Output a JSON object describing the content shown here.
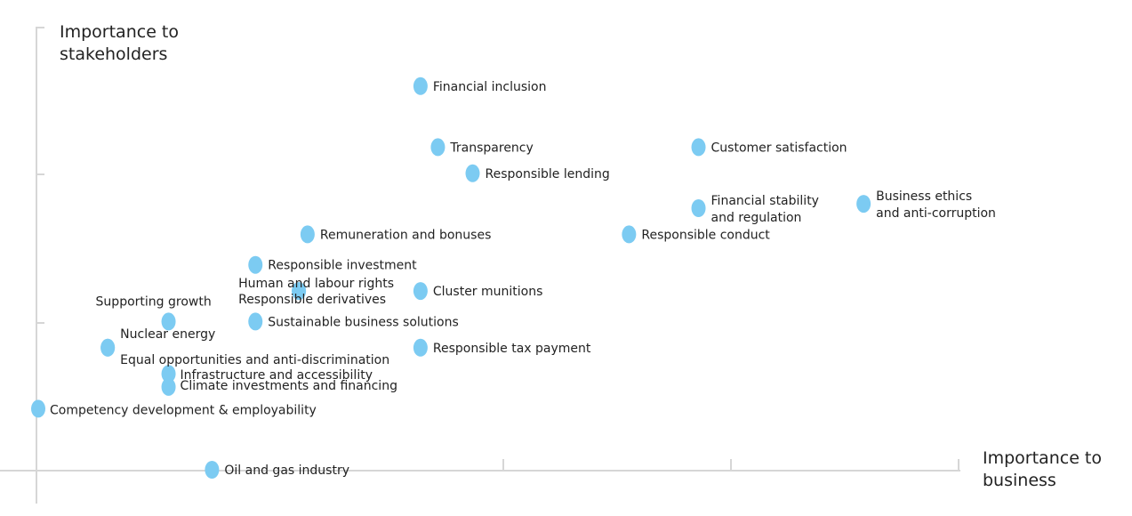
{
  "chart_data": {
    "type": "scatter",
    "title": "",
    "xlabel": "Importance to business",
    "ylabel": "Importance to stakeholders",
    "xlabel_lines": [
      "Importance to",
      "business"
    ],
    "ylabel_lines": [
      "Importance to",
      "stakeholders"
    ],
    "xlim": [
      0,
      1
    ],
    "ylim": [
      0,
      1
    ],
    "grid": false,
    "marker_color": "#7ccbf2",
    "axis_color": "#d6d6d6",
    "points": [
      {
        "label": "Financial inclusion",
        "x": 0.44,
        "y": 0.88
      },
      {
        "label": "Transparency",
        "x": 0.46,
        "y": 0.74
      },
      {
        "label": "Customer satisfaction",
        "x": 0.76,
        "y": 0.74
      },
      {
        "label": "Responsible lending",
        "x": 0.5,
        "y": 0.68
      },
      {
        "label": "Financial stability and regulation",
        "lines": [
          "Financial stability",
          "and regulation"
        ],
        "x": 0.76,
        "y": 0.6
      },
      {
        "label": "Business ethics and anti-corruption",
        "lines": [
          "Business ethics",
          "and anti-corruption"
        ],
        "x": 0.95,
        "y": 0.61
      },
      {
        "label": "Remuneration and bonuses",
        "x": 0.31,
        "y": 0.54
      },
      {
        "label": "Responsible conduct",
        "x": 0.68,
        "y": 0.54
      },
      {
        "label": "Responsible investment",
        "x": 0.25,
        "y": 0.47
      },
      {
        "label": "Human and labour rights",
        "x": 0.3,
        "y": 0.41
      },
      {
        "label": "Responsible derivatives",
        "x": 0.3,
        "y": 0.41
      },
      {
        "label": "Cluster munitions",
        "x": 0.44,
        "y": 0.41
      },
      {
        "label": "Supporting growth",
        "x": 0.15,
        "y": 0.34
      },
      {
        "label": "Sustainable business solutions",
        "x": 0.25,
        "y": 0.34
      },
      {
        "label": "Nuclear energy",
        "x": 0.08,
        "y": 0.28
      },
      {
        "label": "Equal opportunities and anti-discrimination",
        "x": 0.08,
        "y": 0.28
      },
      {
        "label": "Responsible tax payment",
        "x": 0.44,
        "y": 0.28
      },
      {
        "label": "Infrastructure and accessibility",
        "x": 0.15,
        "y": 0.22
      },
      {
        "label": "Climate investments and financing",
        "x": 0.15,
        "y": 0.19
      },
      {
        "label": "Competency development & employability",
        "x": 0.0,
        "y": 0.14
      },
      {
        "label": "Oil and gas industry",
        "x": 0.2,
        "y": 0.0
      }
    ]
  }
}
